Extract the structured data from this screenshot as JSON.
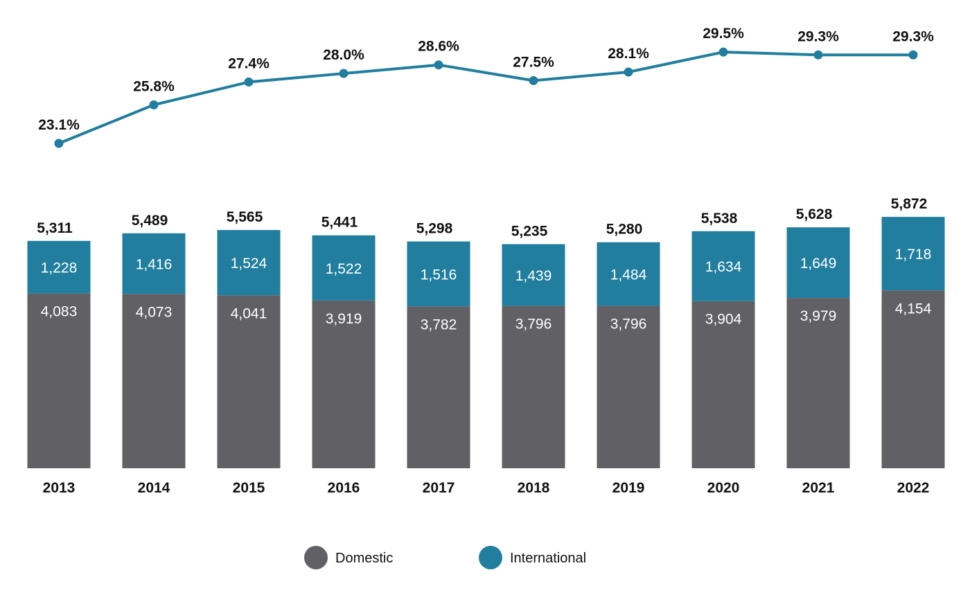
{
  "chart_data": {
    "type": "bar",
    "stacked": true,
    "categories": [
      "2013",
      "2014",
      "2015",
      "2016",
      "2017",
      "2018",
      "2019",
      "2020",
      "2021",
      "2022"
    ],
    "series": [
      {
        "name": "Domestic",
        "color": "#606065",
        "values": [
          4083,
          4073,
          4041,
          3919,
          3782,
          3796,
          3796,
          3904,
          3979,
          4154
        ],
        "labels": [
          "4,083",
          "4,073",
          "4,041",
          "3,919",
          "3,782",
          "3,796",
          "3,796",
          "3,904",
          "3,979",
          "4,154"
        ]
      },
      {
        "name": "International",
        "color": "#217e9e",
        "values": [
          1228,
          1416,
          1524,
          1522,
          1516,
          1439,
          1484,
          1634,
          1649,
          1718
        ],
        "labels": [
          "1,228",
          "1,416",
          "1,524",
          "1,522",
          "1,516",
          "1,439",
          "1,484",
          "1,634",
          "1,649",
          "1,718"
        ]
      }
    ],
    "totals": [
      5311,
      5489,
      5565,
      5441,
      5298,
      5235,
      5280,
      5538,
      5628,
      5872
    ],
    "total_labels": [
      "5,311",
      "5,489",
      "5,565",
      "5,441",
      "5,298",
      "5,235",
      "5,280",
      "5,538",
      "5,628",
      "5,872"
    ],
    "line": {
      "color": "#217e9e",
      "values": [
        23.1,
        25.8,
        27.4,
        28.0,
        28.6,
        27.5,
        28.1,
        29.5,
        29.3,
        29.3
      ],
      "labels": [
        "23.1%",
        "25.8%",
        "27.4%",
        "28.0%",
        "28.6%",
        "27.5%",
        "28.1%",
        "29.5%",
        "29.3%",
        "29.3%"
      ]
    },
    "legend": {
      "position": "bottom-center",
      "items": [
        {
          "label": "Domestic",
          "color": "#606065"
        },
        {
          "label": "International",
          "color": "#217e9e"
        }
      ]
    },
    "grid": false
  }
}
